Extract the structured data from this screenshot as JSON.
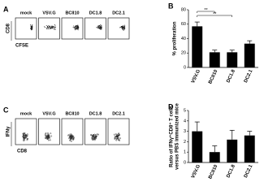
{
  "panels": {
    "A": {
      "letter": "A",
      "samples": [
        "mock",
        "VSV.G",
        "BCII10",
        "DC1.8",
        "DC2.1"
      ],
      "y_axis": "CD8",
      "x_axis": "CFSE"
    },
    "C": {
      "letter": "C",
      "samples": [
        "mock",
        "VSV.G",
        "BCII10",
        "DC1.8",
        "DC2.1"
      ],
      "y_axis": "IFNγ",
      "x_axis": "CD8"
    }
  },
  "chart_data": [
    {
      "type": "bar",
      "panel_label": "B",
      "ylabel": [
        "% proliferation"
      ],
      "categories": [
        "VSV.G",
        "BCII10",
        "DC1.8",
        "DC2.1"
      ],
      "values": [
        57,
        21,
        21,
        33
      ],
      "errors": [
        6,
        3,
        3,
        4
      ],
      "color": "#000000",
      "ylim": [
        0,
        80
      ],
      "yticks": [
        0,
        20,
        40,
        60,
        80
      ],
      "annotations": [
        "**",
        "**"
      ]
    },
    {
      "type": "bar",
      "panel_label": "D",
      "ylabel": [
        "Ratio of IFNγ⁺CD8⁺ T cells",
        "versus PBS immunized mice"
      ],
      "categories": [
        "VSV.G",
        "BCII10",
        "DC1.8",
        "DC2.1"
      ],
      "values": [
        3.0,
        1.0,
        2.2,
        2.6
      ],
      "errors": [
        0.9,
        0.6,
        0.9,
        0.4
      ],
      "color": "#000000",
      "ylim": [
        0,
        5
      ],
      "yticks": [
        0,
        1,
        2,
        3,
        4,
        5
      ]
    }
  ]
}
